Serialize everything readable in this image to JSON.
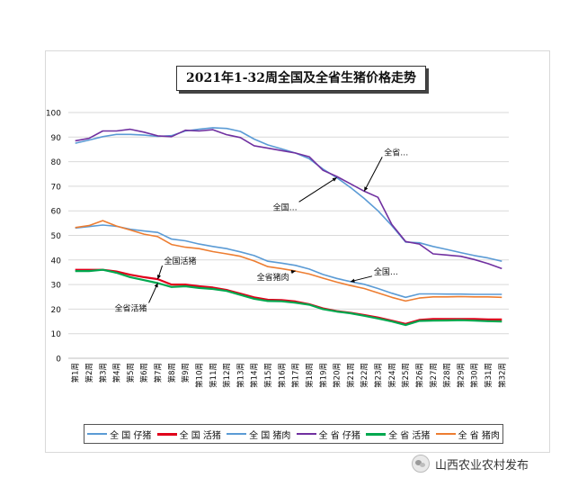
{
  "chart_data": {
    "type": "line",
    "title": "2021年1-32周全国及全省生猪价格走势",
    "xlabel": "",
    "ylabel": "",
    "ylim": [
      0,
      100
    ],
    "yticks": [
      0,
      10,
      20,
      30,
      40,
      50,
      60,
      70,
      80,
      90,
      100
    ],
    "grid": true,
    "legend_position": "bottom",
    "categories": [
      "第1周",
      "第2周",
      "第3周",
      "第4周",
      "第5周",
      "第6周",
      "第7周",
      "第8周",
      "第9周",
      "第10周",
      "第11周",
      "第12周",
      "第13周",
      "第14周",
      "第15周",
      "第16周",
      "第17周",
      "第18周",
      "第19周",
      "第20周",
      "第21周",
      "第22周",
      "第23周",
      "第24周",
      "第25周",
      "第26周",
      "第27周",
      "第28周",
      "第29周",
      "第30周",
      "第31周",
      "第32周"
    ],
    "series": [
      {
        "name": "全 国 仔猪",
        "color": "#5b9bd5",
        "width": 1.6,
        "values": [
          87.5,
          88.8,
          90.2,
          91.1,
          91.1,
          90.8,
          90.3,
          90.6,
          92.5,
          93.2,
          93.8,
          93.5,
          92.3,
          89.2,
          86.8,
          85.2,
          83.5,
          81.2,
          77.0,
          73.5,
          69.5,
          65.0,
          60.0,
          54.0,
          47.3,
          47.0,
          45.5,
          44.3,
          43.0,
          41.8,
          40.8,
          39.5
        ]
      },
      {
        "name": "全 国 活猪",
        "color": "#e0001b",
        "width": 2.2,
        "values": [
          36.0,
          36.0,
          36.0,
          35.3,
          34.0,
          33.0,
          32.2,
          30.0,
          30.0,
          29.3,
          28.8,
          27.8,
          26.3,
          24.8,
          23.8,
          23.7,
          23.1,
          22.0,
          20.3,
          19.2,
          18.5,
          17.6,
          16.6,
          15.3,
          14.0,
          15.6,
          16.0,
          16.0,
          16.0,
          16.0,
          15.8,
          15.8
        ]
      },
      {
        "name": "全 国 猪肉",
        "color": "#5b9bd5",
        "width": 1.6,
        "values": [
          53.0,
          53.6,
          54.2,
          53.7,
          52.5,
          51.8,
          51.2,
          48.5,
          47.8,
          46.5,
          45.5,
          44.6,
          43.3,
          41.8,
          39.5,
          38.7,
          37.8,
          36.3,
          34.1,
          32.5,
          31.2,
          30.1,
          28.4,
          26.5,
          24.8,
          26.2,
          26.2,
          26.1,
          26.1,
          26.0,
          26.0,
          26.0
        ]
      },
      {
        "name": "全 省 仔猪",
        "color": "#7030a0",
        "width": 1.6,
        "values": [
          88.5,
          89.5,
          92.5,
          92.5,
          93.2,
          92.0,
          90.5,
          90.2,
          92.8,
          92.5,
          93.0,
          91.0,
          89.8,
          86.5,
          85.5,
          84.5,
          83.5,
          82.0,
          76.5,
          74.0,
          71.0,
          68.0,
          65.5,
          54.5,
          47.5,
          46.5,
          42.5,
          42.0,
          41.5,
          40.2,
          38.5,
          36.5
        ]
      },
      {
        "name": "全 省 活猪",
        "color": "#00a84f",
        "width": 2.2,
        "values": [
          35.5,
          35.5,
          36.0,
          34.8,
          33.0,
          31.8,
          30.6,
          29.0,
          29.3,
          28.6,
          28.2,
          27.4,
          25.8,
          24.2,
          23.3,
          23.2,
          22.6,
          21.8,
          20.0,
          19.0,
          18.3,
          17.3,
          16.2,
          15.0,
          13.5,
          15.2,
          15.3,
          15.4,
          15.5,
          15.3,
          15.1,
          15.0
        ]
      },
      {
        "name": "全 省 猪肉",
        "color": "#ed7d31",
        "width": 1.6,
        "values": [
          53.2,
          54.0,
          56.0,
          53.8,
          52.2,
          50.5,
          49.5,
          46.3,
          45.2,
          44.6,
          43.4,
          42.5,
          41.5,
          39.6,
          37.3,
          36.5,
          35.5,
          34.3,
          32.6,
          31.0,
          29.6,
          28.4,
          26.6,
          24.8,
          23.3,
          24.5,
          25.0,
          25.0,
          25.1,
          25.0,
          25.0,
          24.8
        ]
      }
    ],
    "annotations": [
      {
        "text": "全省…",
        "series": "全 省 仔猪",
        "at": "第22周"
      },
      {
        "text": "全国…",
        "series": "全 国 仔猪",
        "at": "第20周"
      },
      {
        "text": "全国活猪",
        "series": "全 国 活猪",
        "at": "第7周"
      },
      {
        "text": "全省活猪",
        "series": "全 省 活猪",
        "at": "第7周"
      },
      {
        "text": "全省猪肉",
        "series": "全 省 猪肉",
        "at": "第17周"
      },
      {
        "text": "全国…",
        "series": "全 国 猪肉",
        "at": "第21周"
      }
    ]
  },
  "watermark": {
    "text": "山西农业农村发布",
    "icon": "wechat-icon"
  }
}
